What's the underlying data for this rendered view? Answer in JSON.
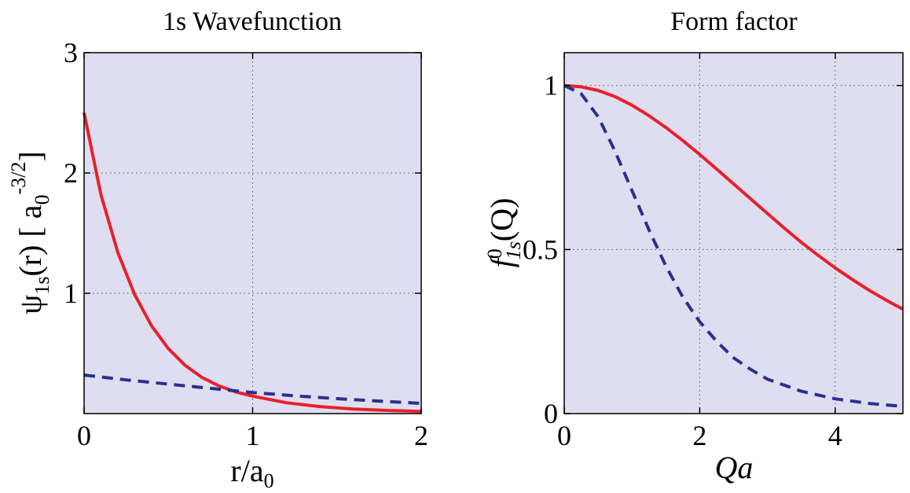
{
  "chart_data": [
    {
      "type": "line",
      "title": "1s Wavefunction",
      "xlabel": "r/a",
      "xlabel_sub": "0",
      "ylabel_main": "ψ",
      "ylabel_sub1": "1s",
      "ylabel_mid": "(r) [ a",
      "ylabel_sub2": "0",
      "ylabel_sup": "-3/2",
      "ylabel_end": "]",
      "xlim": [
        0,
        2
      ],
      "ylim": [
        0,
        3
      ],
      "xticks": [
        0,
        1,
        2
      ],
      "xtick_labels": [
        "0",
        "1",
        "2"
      ],
      "yticks": [
        1,
        2,
        3
      ],
      "ytick_labels": [
        "1",
        "2",
        "3"
      ],
      "grid": true,
      "series": [
        {
          "color": "#e8202a",
          "dash": "solid",
          "x": [
            0,
            0.1,
            0.2,
            0.3,
            0.4,
            0.5,
            0.6,
            0.7,
            0.8,
            0.9,
            1.0,
            1.2,
            1.4,
            1.6,
            1.8,
            2.0
          ],
          "y": [
            2.5,
            1.82,
            1.34,
            0.99,
            0.73,
            0.54,
            0.4,
            0.3,
            0.23,
            0.18,
            0.145,
            0.09,
            0.058,
            0.038,
            0.026,
            0.018
          ]
        },
        {
          "color": "#2a2f8f",
          "dash": "dashed",
          "x": [
            0,
            0.25,
            0.5,
            0.75,
            1.0,
            1.25,
            1.5,
            1.75,
            2.0
          ],
          "y": [
            0.32,
            0.28,
            0.245,
            0.21,
            0.175,
            0.148,
            0.124,
            0.104,
            0.085
          ]
        }
      ]
    },
    {
      "type": "line",
      "title": "Form factor",
      "xlabel": "Qa",
      "ylabel_main": "f",
      "ylabel_sup": "0",
      "ylabel_sub": "1s",
      "ylabel_end": "(Q)",
      "xlim": [
        0,
        5
      ],
      "ylim": [
        0,
        1.1
      ],
      "xticks": [
        0,
        2,
        4
      ],
      "xtick_labels": [
        "0",
        "2",
        "4"
      ],
      "yticks": [
        0,
        0.5,
        1
      ],
      "ytick_labels": [
        "0",
        "0.5",
        "1"
      ],
      "grid": true,
      "series": [
        {
          "color": "#e8202a",
          "dash": "solid",
          "x": [
            0,
            0.25,
            0.5,
            0.75,
            1.0,
            1.25,
            1.5,
            1.75,
            2.0,
            2.25,
            2.5,
            2.75,
            3.0,
            3.25,
            3.5,
            3.75,
            4.0,
            4.25,
            4.5,
            4.75,
            5.0
          ],
          "y": [
            1.0,
            0.996,
            0.985,
            0.966,
            0.94,
            0.908,
            0.872,
            0.832,
            0.79,
            0.745,
            0.7,
            0.655,
            0.61,
            0.565,
            0.522,
            0.482,
            0.444,
            0.409,
            0.376,
            0.346,
            0.318
          ]
        },
        {
          "color": "#2a2f8f",
          "dash": "dashed",
          "x": [
            0,
            0.25,
            0.5,
            0.75,
            1.0,
            1.25,
            1.5,
            1.75,
            2.0,
            2.25,
            2.5,
            2.75,
            3.0,
            3.5,
            4.0,
            4.5,
            5.0
          ],
          "y": [
            1.0,
            0.975,
            0.905,
            0.8,
            0.68,
            0.56,
            0.45,
            0.355,
            0.28,
            0.22,
            0.17,
            0.135,
            0.105,
            0.068,
            0.045,
            0.031,
            0.022
          ]
        }
      ]
    }
  ]
}
